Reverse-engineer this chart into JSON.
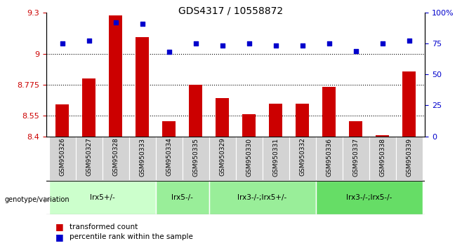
{
  "title": "GDS4317 / 10558872",
  "samples": [
    "GSM950326",
    "GSM950327",
    "GSM950328",
    "GSM950333",
    "GSM950334",
    "GSM950335",
    "GSM950329",
    "GSM950330",
    "GSM950331",
    "GSM950332",
    "GSM950336",
    "GSM950337",
    "GSM950338",
    "GSM950339"
  ],
  "bar_values": [
    8.63,
    8.82,
    9.28,
    9.12,
    8.51,
    8.775,
    8.68,
    8.56,
    8.64,
    8.64,
    8.76,
    8.51,
    8.41,
    8.87
  ],
  "dot_values": [
    75,
    77,
    92,
    91,
    68,
    75,
    73,
    75,
    73,
    73,
    75,
    69,
    75,
    77
  ],
  "ylim_left": [
    8.4,
    9.3
  ],
  "ylim_right": [
    0,
    100
  ],
  "yticks_left": [
    8.4,
    8.55,
    8.775,
    9.0,
    9.3
  ],
  "yticks_right": [
    0,
    25,
    50,
    75,
    100
  ],
  "ytick_labels_left": [
    "8.4",
    "8.55",
    "8.775",
    "9",
    "9.3"
  ],
  "ytick_labels_right": [
    "0",
    "25",
    "50",
    "75",
    "100%"
  ],
  "hlines": [
    8.55,
    8.775,
    9.0
  ],
  "bar_color": "#cc0000",
  "dot_color": "#0000cc",
  "bar_bottom": 8.4,
  "groups": [
    {
      "label": "lrx5+/-",
      "start": 0,
      "end": 4,
      "color": "#ccffcc"
    },
    {
      "label": "lrx5-/-",
      "start": 4,
      "end": 6,
      "color": "#99ee99"
    },
    {
      "label": "lrx3-/-;lrx5+/-",
      "start": 6,
      "end": 10,
      "color": "#99ee99"
    },
    {
      "label": "lrx3-/-;lrx5-/-",
      "start": 10,
      "end": 14,
      "color": "#66dd66"
    }
  ],
  "legend_red": "transformed count",
  "legend_blue": "percentile rank within the sample",
  "genotype_label": "genotype/variation",
  "tick_color_left": "#cc0000",
  "tick_color_right": "#0000cc"
}
